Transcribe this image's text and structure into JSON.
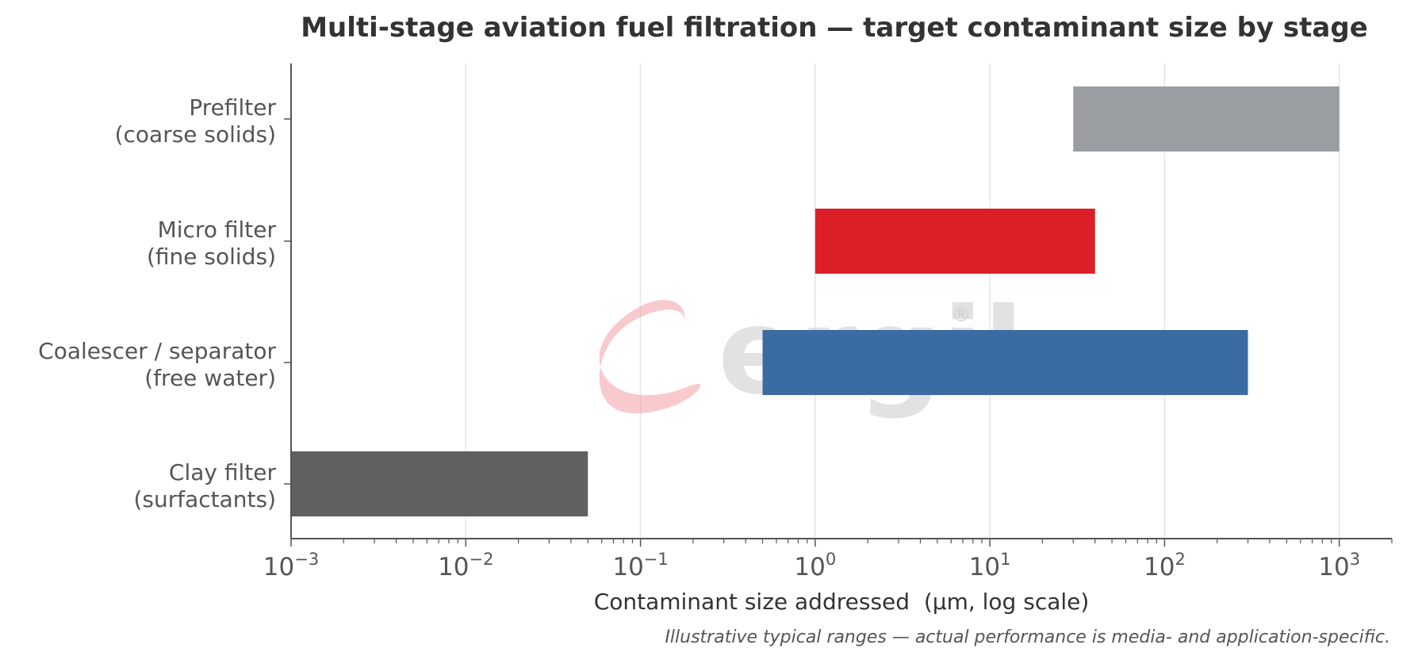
{
  "chart_data": {
    "type": "bar",
    "orientation": "horizontal",
    "title": "Multi-stage aviation fuel filtration — target contaminant size by stage",
    "xlabel": "Contaminant size addressed  (μm, log scale)",
    "xscale": "log",
    "xlim": [
      0.001,
      2000
    ],
    "grid": "vertical-major",
    "footnote": "Illustrative typical ranges — actual performance is media- and application-specific.",
    "ticks": [
      {
        "base": "10",
        "exp": "−3",
        "value": 0.001
      },
      {
        "base": "10",
        "exp": "−2",
        "value": 0.01
      },
      {
        "base": "10",
        "exp": "−1",
        "value": 0.1
      },
      {
        "base": "10",
        "exp": "0",
        "value": 1
      },
      {
        "base": "10",
        "exp": "1",
        "value": 10
      },
      {
        "base": "10",
        "exp": "2",
        "value": 100
      },
      {
        "base": "10",
        "exp": "3",
        "value": 1000
      }
    ],
    "categories": [
      {
        "line1": "Prefilter",
        "line2": "(coarse solids)",
        "start": 30,
        "end": 1000,
        "color": "#9a9ea2"
      },
      {
        "line1": "Micro filter",
        "line2": "(fine solids)",
        "start": 1,
        "end": 40,
        "color": "#dc1f26"
      },
      {
        "line1": "Coalescer / separator",
        "line2": "(free water)",
        "start": 0.5,
        "end": 300,
        "color": "#3a6ca3"
      },
      {
        "line1": "Clay filter",
        "line2": "(surfactants)",
        "start": 0.001,
        "end": 0.05,
        "color": "#5f6062"
      }
    ]
  },
  "watermark": {
    "text": "ergil",
    "mark": "®",
    "color": "#f08a92"
  }
}
